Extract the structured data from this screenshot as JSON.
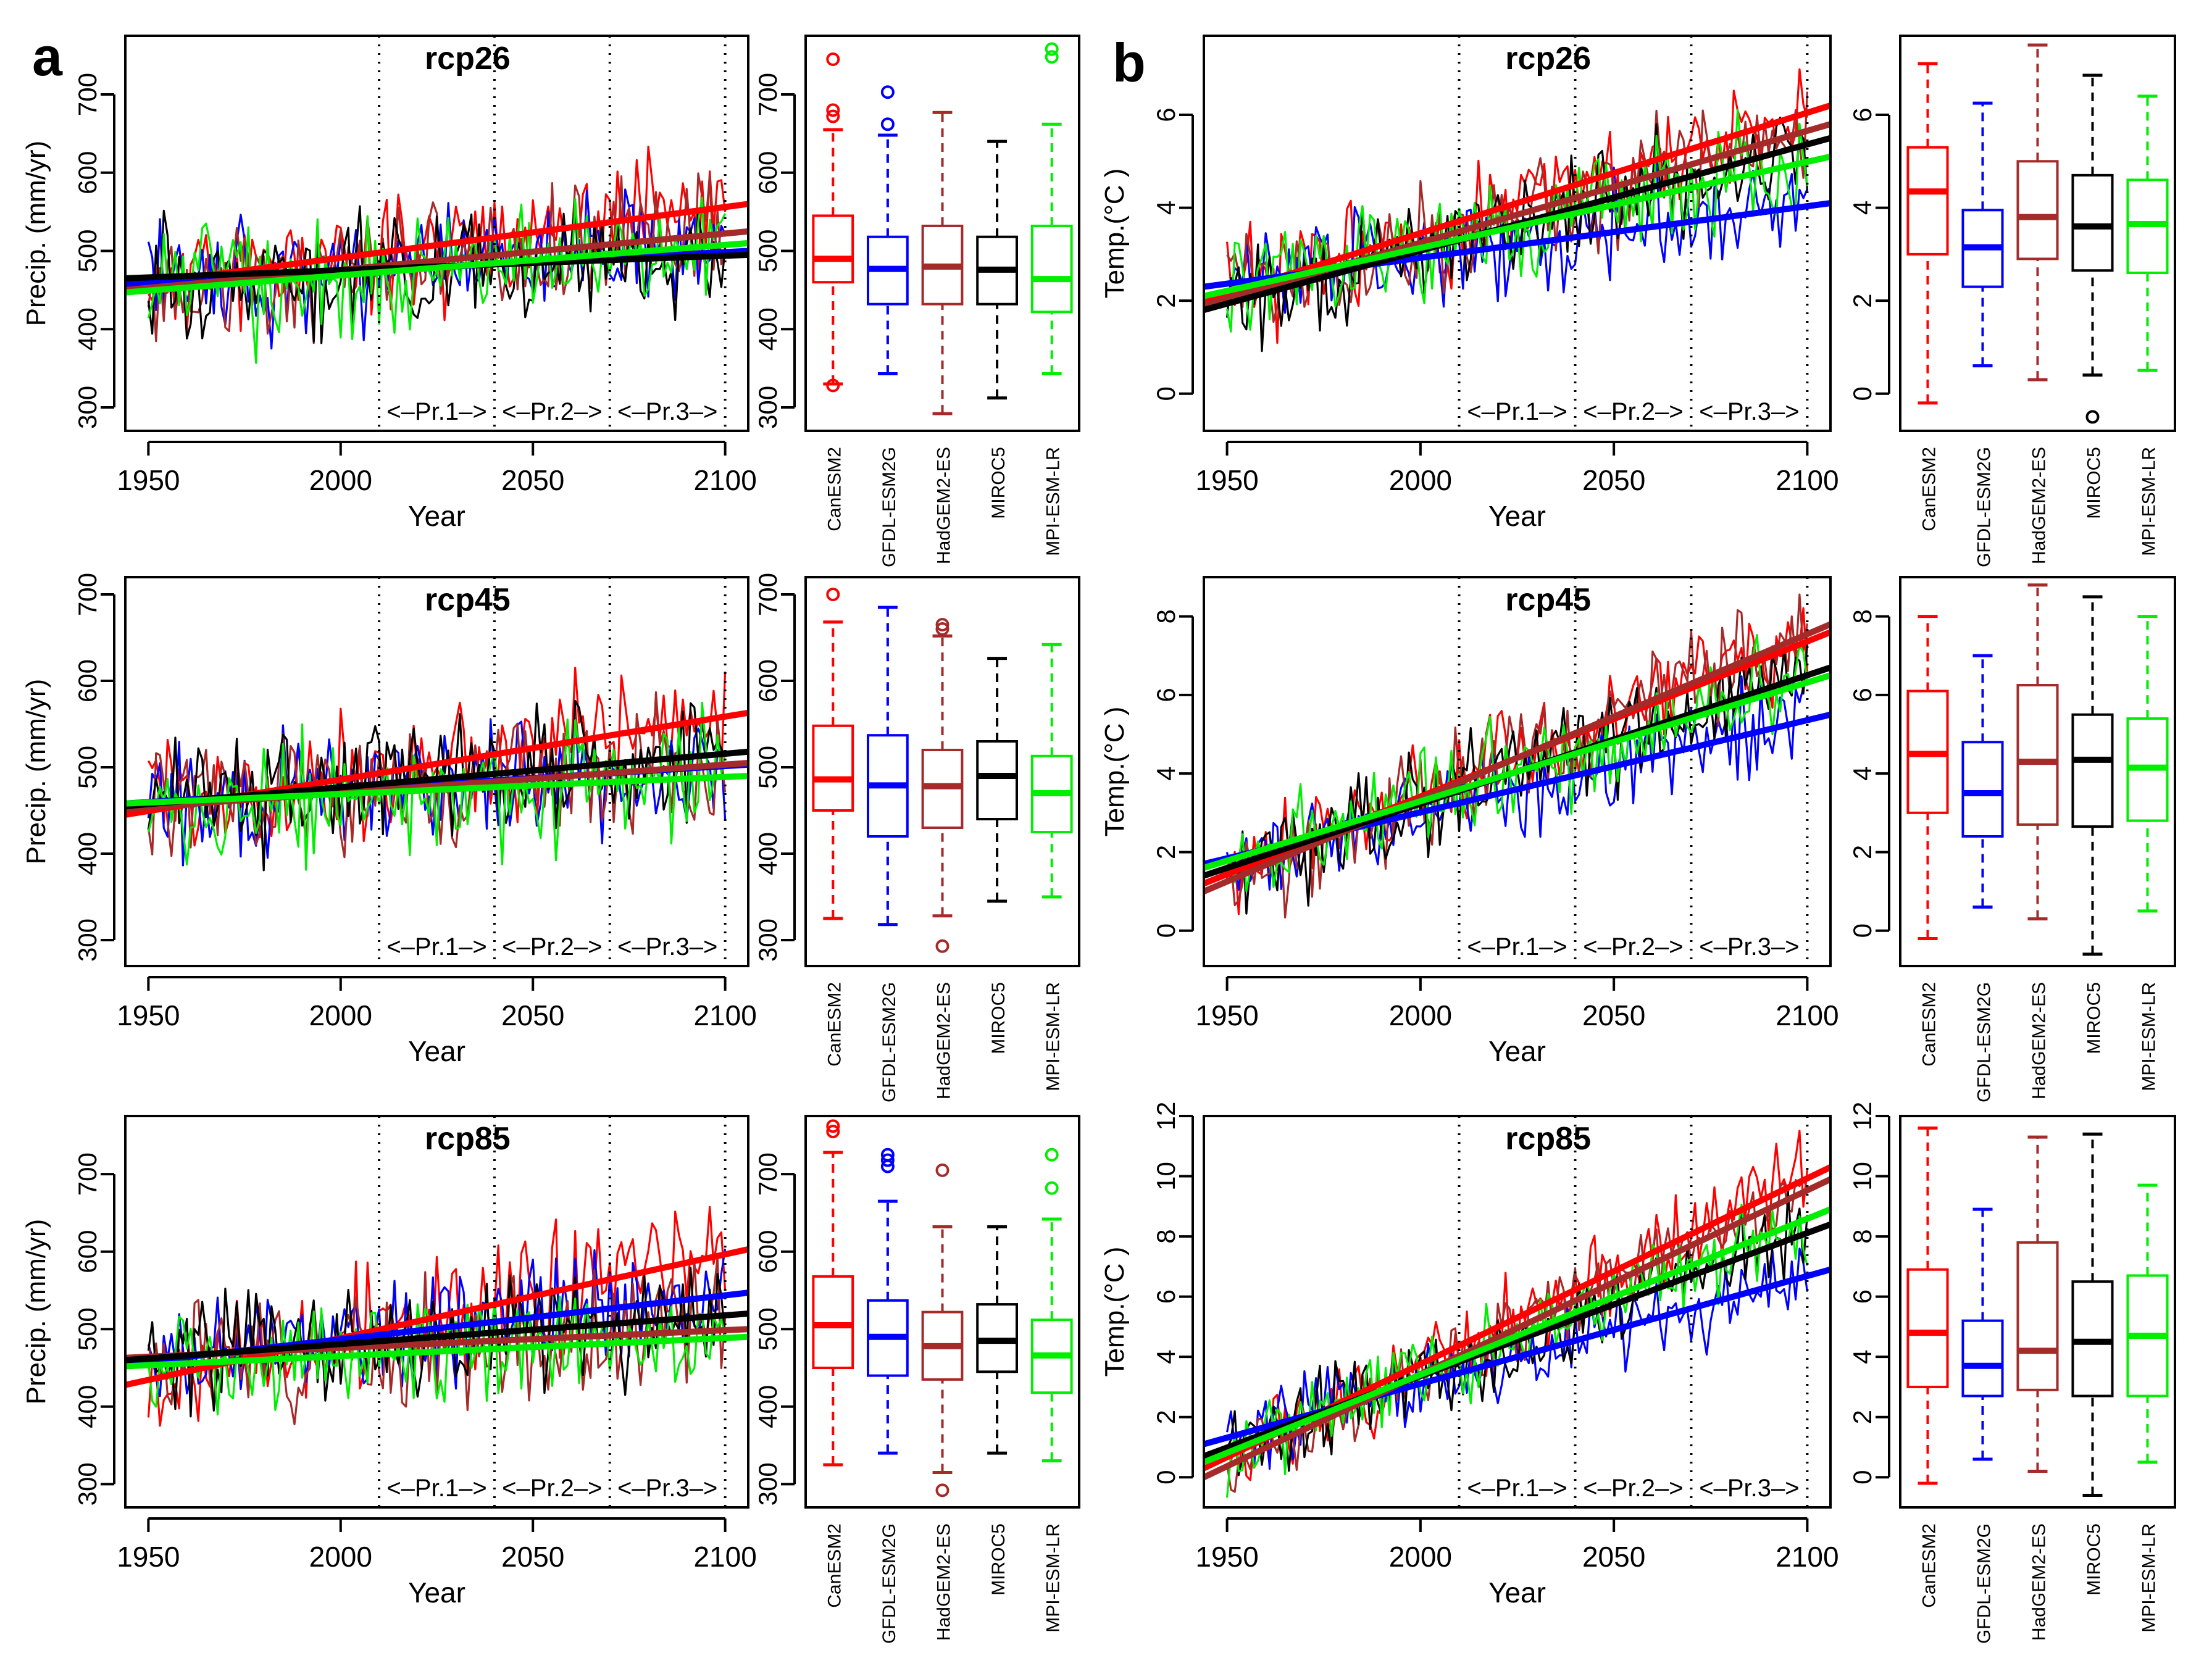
{
  "figure": {
    "panel_a": "a",
    "panel_b": "b",
    "colors": {
      "CanESM2": "#ff0000",
      "GFDL-ESM2G": "#0000ff",
      "HadGEM2-ES": "#a52a2a",
      "MIROC5": "#000000",
      "MPI-ESM-LR": "#00ee00"
    },
    "models": [
      "CanESM2",
      "GFDL-ESM2G",
      "HadGEM2-ES",
      "MIROC5",
      "MPI-ESM-LR"
    ],
    "periods": [
      "<–Pr.1–>",
      "<–Pr.2–>",
      "<–Pr.3–>"
    ],
    "period_boundaries": [
      2010,
      2040,
      2070,
      2100
    ]
  },
  "chart_data": [
    {
      "id": "precip_rcp26",
      "type": "line",
      "title": "rcp26",
      "xlabel": "Year",
      "ylabel": "Precip. (mm/yr)",
      "xlim": [
        1944,
        2106
      ],
      "ylim": [
        270,
        775
      ],
      "xticks": [
        1950,
        2000,
        2050,
        2100
      ],
      "yticks": [
        300,
        400,
        500,
        600,
        700
      ],
      "series_spec": {
        "base": 470,
        "amp": 68,
        "noise_seed": 11
      },
      "trends": [
        {
          "name": "CanESM2",
          "start": [
            1944,
            455
          ],
          "end": [
            2106,
            560
          ]
        },
        {
          "name": "GFDL-ESM2G",
          "start": [
            1944,
            458
          ],
          "end": [
            2106,
            500
          ]
        },
        {
          "name": "HadGEM2-ES",
          "start": [
            1944,
            450
          ],
          "end": [
            2106,
            525
          ]
        },
        {
          "name": "MIROC5",
          "start": [
            1944,
            465
          ],
          "end": [
            2106,
            495
          ]
        },
        {
          "name": "MPI-ESM-LR",
          "start": [
            1944,
            447
          ],
          "end": [
            2106,
            510
          ]
        }
      ]
    },
    {
      "id": "precip_rcp26_box",
      "type": "box",
      "ylim": [
        270,
        775
      ],
      "yticks": [
        300,
        400,
        500,
        600,
        700
      ],
      "boxes": [
        {
          "name": "CanESM2",
          "whisker_low": 330,
          "q1": 460,
          "median": 490,
          "q3": 545,
          "whisker_high": 655,
          "outliers": [
            745,
            680,
            672,
            328
          ]
        },
        {
          "name": "GFDL-ESM2G",
          "whisker_low": 343,
          "q1": 432,
          "median": 477,
          "q3": 518,
          "whisker_high": 648,
          "outliers": [
            703,
            662
          ]
        },
        {
          "name": "HadGEM2-ES",
          "whisker_low": 292,
          "q1": 432,
          "median": 480,
          "q3": 532,
          "whisker_high": 677,
          "outliers": []
        },
        {
          "name": "MIROC5",
          "whisker_low": 312,
          "q1": 432,
          "median": 476,
          "q3": 518,
          "whisker_high": 640,
          "outliers": []
        },
        {
          "name": "MPI-ESM-LR",
          "whisker_low": 343,
          "q1": 422,
          "median": 464,
          "q3": 532,
          "whisker_high": 662,
          "outliers": [
            758,
            748
          ]
        }
      ]
    },
    {
      "id": "temp_rcp26",
      "type": "line",
      "title": "rcp26",
      "xlabel": "Year",
      "ylabel": "Temp.(°C )",
      "xlim": [
        1944,
        2106
      ],
      "ylim": [
        -0.8,
        7.7
      ],
      "xticks": [
        1950,
        2000,
        2050,
        2100
      ],
      "yticks": [
        0,
        2,
        4,
        6
      ],
      "series_spec": {
        "base": 2.6,
        "amp": 1.1,
        "noise_seed": 23,
        "slope": 0.022
      },
      "trends": [
        {
          "name": "CanESM2",
          "start": [
            1944,
            2.0
          ],
          "end": [
            2106,
            6.2
          ]
        },
        {
          "name": "GFDL-ESM2G",
          "start": [
            1944,
            2.3
          ],
          "end": [
            2106,
            4.1
          ]
        },
        {
          "name": "HadGEM2-ES",
          "start": [
            1944,
            1.9
          ],
          "end": [
            2106,
            5.8
          ]
        },
        {
          "name": "MIROC5",
          "start": [
            1944,
            1.8
          ],
          "end": [
            2106,
            5.5
          ]
        },
        {
          "name": "MPI-ESM-LR",
          "start": [
            1944,
            2.1
          ],
          "end": [
            2106,
            5.1
          ]
        }
      ]
    },
    {
      "id": "temp_rcp26_box",
      "type": "box",
      "ylim": [
        -0.8,
        7.7
      ],
      "yticks": [
        0,
        2,
        4,
        6
      ],
      "boxes": [
        {
          "name": "CanESM2",
          "whisker_low": -0.2,
          "q1": 3.0,
          "median": 4.35,
          "q3": 5.3,
          "whisker_high": 7.1,
          "outliers": []
        },
        {
          "name": "GFDL-ESM2G",
          "whisker_low": 0.6,
          "q1": 2.3,
          "median": 3.15,
          "q3": 3.95,
          "whisker_high": 6.25,
          "outliers": []
        },
        {
          "name": "HadGEM2-ES",
          "whisker_low": 0.3,
          "q1": 2.9,
          "median": 3.8,
          "q3": 5.0,
          "whisker_high": 7.5,
          "outliers": []
        },
        {
          "name": "MIROC5",
          "whisker_low": 0.4,
          "q1": 2.65,
          "median": 3.6,
          "q3": 4.7,
          "whisker_high": 6.85,
          "outliers": [
            -0.5
          ]
        },
        {
          "name": "MPI-ESM-LR",
          "whisker_low": 0.5,
          "q1": 2.6,
          "median": 3.65,
          "q3": 4.6,
          "whisker_high": 6.4,
          "outliers": []
        }
      ]
    },
    {
      "id": "precip_rcp45",
      "type": "line",
      "title": "rcp45",
      "xlabel": "Year",
      "ylabel": "Precip. (mm/yr)",
      "xlim": [
        1944,
        2106
      ],
      "ylim": [
        270,
        720
      ],
      "xticks": [
        1950,
        2000,
        2050,
        2100
      ],
      "yticks": [
        300,
        400,
        500,
        600,
        700
      ],
      "series_spec": {
        "base": 470,
        "amp": 68,
        "noise_seed": 37
      },
      "trends": [
        {
          "name": "CanESM2",
          "start": [
            1944,
            445
          ],
          "end": [
            2106,
            563
          ]
        },
        {
          "name": "GFDL-ESM2G",
          "start": [
            1944,
            458
          ],
          "end": [
            2106,
            503
          ]
        },
        {
          "name": "HadGEM2-ES",
          "start": [
            1944,
            452
          ],
          "end": [
            2106,
            505
          ]
        },
        {
          "name": "MIROC5",
          "start": [
            1944,
            455
          ],
          "end": [
            2106,
            518
          ]
        },
        {
          "name": "MPI-ESM-LR",
          "start": [
            1944,
            458
          ],
          "end": [
            2106,
            490
          ]
        }
      ]
    },
    {
      "id": "precip_rcp45_box",
      "type": "box",
      "ylim": [
        270,
        720
      ],
      "yticks": [
        300,
        400,
        500,
        600,
        700
      ],
      "boxes": [
        {
          "name": "CanESM2",
          "whisker_low": 325,
          "q1": 450,
          "median": 486,
          "q3": 548,
          "whisker_high": 668,
          "outliers": [
            700
          ]
        },
        {
          "name": "GFDL-ESM2G",
          "whisker_low": 318,
          "q1": 420,
          "median": 479,
          "q3": 537,
          "whisker_high": 685,
          "outliers": []
        },
        {
          "name": "HadGEM2-ES",
          "whisker_low": 328,
          "q1": 430,
          "median": 478,
          "q3": 520,
          "whisker_high": 652,
          "outliers": [
            665,
            660,
            293
          ]
        },
        {
          "name": "MIROC5",
          "whisker_low": 345,
          "q1": 440,
          "median": 490,
          "q3": 530,
          "whisker_high": 626,
          "outliers": []
        },
        {
          "name": "MPI-ESM-LR",
          "whisker_low": 350,
          "q1": 425,
          "median": 470,
          "q3": 513,
          "whisker_high": 642,
          "outliers": []
        }
      ]
    },
    {
      "id": "temp_rcp45",
      "type": "line",
      "title": "rcp45",
      "xlabel": "Year",
      "ylabel": "Temp.(°C )",
      "xlim": [
        1944,
        2106
      ],
      "ylim": [
        -0.9,
        9.0
      ],
      "xticks": [
        1950,
        2000,
        2050,
        2100
      ],
      "yticks": [
        0,
        2,
        4,
        6,
        8
      ],
      "series_spec": {
        "base": 2.1,
        "amp": 1.2,
        "noise_seed": 41,
        "slope": 0.032
      },
      "trends": [
        {
          "name": "CanESM2",
          "start": [
            1944,
            1.2
          ],
          "end": [
            2106,
            7.6
          ]
        },
        {
          "name": "GFDL-ESM2G",
          "start": [
            1944,
            1.7
          ],
          "end": [
            2106,
            5.5
          ]
        },
        {
          "name": "HadGEM2-ES",
          "start": [
            1944,
            1.0
          ],
          "end": [
            2106,
            7.8
          ]
        },
        {
          "name": "MIROC5",
          "start": [
            1944,
            1.4
          ],
          "end": [
            2106,
            6.7
          ]
        },
        {
          "name": "MPI-ESM-LR",
          "start": [
            1944,
            1.6
          ],
          "end": [
            2106,
            6.5
          ]
        }
      ]
    },
    {
      "id": "temp_rcp45_box",
      "type": "box",
      "ylim": [
        -0.9,
        9.0
      ],
      "yticks": [
        0,
        2,
        4,
        6,
        8
      ],
      "boxes": [
        {
          "name": "CanESM2",
          "whisker_low": -0.2,
          "q1": 3.0,
          "median": 4.5,
          "q3": 6.1,
          "whisker_high": 8.0,
          "outliers": []
        },
        {
          "name": "GFDL-ESM2G",
          "whisker_low": 0.6,
          "q1": 2.4,
          "median": 3.5,
          "q3": 4.8,
          "whisker_high": 7.0,
          "outliers": []
        },
        {
          "name": "HadGEM2-ES",
          "whisker_low": 0.3,
          "q1": 2.7,
          "median": 4.3,
          "q3": 6.25,
          "whisker_high": 8.8,
          "outliers": []
        },
        {
          "name": "MIROC5",
          "whisker_low": -0.6,
          "q1": 2.65,
          "median": 4.35,
          "q3": 5.5,
          "whisker_high": 8.5,
          "outliers": []
        },
        {
          "name": "MPI-ESM-LR",
          "whisker_low": 0.5,
          "q1": 2.8,
          "median": 4.15,
          "q3": 5.4,
          "whisker_high": 8.0,
          "outliers": []
        }
      ]
    },
    {
      "id": "precip_rcp85",
      "type": "line",
      "title": "rcp85",
      "xlabel": "Year",
      "ylabel": "Precip. (mm/yr)",
      "xlim": [
        1944,
        2106
      ],
      "ylim": [
        270,
        775
      ],
      "xticks": [
        1950,
        2000,
        2050,
        2100
      ],
      "yticks": [
        300,
        400,
        500,
        600,
        700
      ],
      "series_spec": {
        "base": 475,
        "amp": 72,
        "noise_seed": 53
      },
      "trends": [
        {
          "name": "CanESM2",
          "start": [
            1944,
            428
          ],
          "end": [
            2106,
            603
          ]
        },
        {
          "name": "GFDL-ESM2G",
          "start": [
            1944,
            455
          ],
          "end": [
            2106,
            547
          ]
        },
        {
          "name": "HadGEM2-ES",
          "start": [
            1944,
            463
          ],
          "end": [
            2106,
            500
          ]
        },
        {
          "name": "MIROC5",
          "start": [
            1944,
            460
          ],
          "end": [
            2106,
            520
          ]
        },
        {
          "name": "MPI-ESM-LR",
          "start": [
            1944,
            452
          ],
          "end": [
            2106,
            490
          ]
        }
      ]
    },
    {
      "id": "precip_rcp85_box",
      "type": "box",
      "ylim": [
        270,
        775
      ],
      "yticks": [
        300,
        400,
        500,
        600,
        700
      ],
      "boxes": [
        {
          "name": "CanESM2",
          "whisker_low": 325,
          "q1": 450,
          "median": 505,
          "q3": 568,
          "whisker_high": 728,
          "outliers": [
            762,
            755
          ]
        },
        {
          "name": "GFDL-ESM2G",
          "whisker_low": 340,
          "q1": 440,
          "median": 490,
          "q3": 537,
          "whisker_high": 665,
          "outliers": [
            725,
            718,
            710
          ]
        },
        {
          "name": "HadGEM2-ES",
          "whisker_low": 315,
          "q1": 435,
          "median": 478,
          "q3": 522,
          "whisker_high": 632,
          "outliers": [
            705,
            292
          ]
        },
        {
          "name": "MIROC5",
          "whisker_low": 340,
          "q1": 445,
          "median": 485,
          "q3": 532,
          "whisker_high": 632,
          "outliers": []
        },
        {
          "name": "MPI-ESM-LR",
          "whisker_low": 330,
          "q1": 418,
          "median": 466,
          "q3": 512,
          "whisker_high": 642,
          "outliers": [
            725,
            682
          ]
        }
      ]
    },
    {
      "id": "temp_rcp85",
      "type": "line",
      "title": "rcp85",
      "xlabel": "Year",
      "ylabel": "Temp.(°C )",
      "xlim": [
        1944,
        2106
      ],
      "ylim": [
        -1.0,
        12.0
      ],
      "xticks": [
        1950,
        2000,
        2050,
        2100
      ],
      "yticks": [
        0,
        2,
        4,
        6,
        8,
        10,
        12
      ],
      "series_spec": {
        "base": 1.9,
        "amp": 1.3,
        "noise_seed": 67,
        "slope": 0.058
      },
      "trends": [
        {
          "name": "CanESM2",
          "start": [
            1944,
            0.3
          ],
          "end": [
            2106,
            10.3
          ]
        },
        {
          "name": "GFDL-ESM2G",
          "start": [
            1944,
            1.1
          ],
          "end": [
            2106,
            6.9
          ]
        },
        {
          "name": "HadGEM2-ES",
          "start": [
            1944,
            0.0
          ],
          "end": [
            2106,
            9.9
          ]
        },
        {
          "name": "MIROC5",
          "start": [
            1944,
            0.7
          ],
          "end": [
            2106,
            8.4
          ]
        },
        {
          "name": "MPI-ESM-LR",
          "start": [
            1944,
            0.5
          ],
          "end": [
            2106,
            8.9
          ]
        }
      ]
    },
    {
      "id": "temp_rcp85_box",
      "type": "box",
      "ylim": [
        -1.0,
        12.0
      ],
      "yticks": [
        0,
        2,
        4,
        6,
        8,
        10,
        12
      ],
      "boxes": [
        {
          "name": "CanESM2",
          "whisker_low": -0.2,
          "q1": 3.0,
          "median": 4.8,
          "q3": 6.9,
          "whisker_high": 11.6,
          "outliers": []
        },
        {
          "name": "GFDL-ESM2G",
          "whisker_low": 0.6,
          "q1": 2.7,
          "median": 3.7,
          "q3": 5.2,
          "whisker_high": 8.9,
          "outliers": []
        },
        {
          "name": "HadGEM2-ES",
          "whisker_low": 0.2,
          "q1": 2.9,
          "median": 4.2,
          "q3": 7.8,
          "whisker_high": 11.3,
          "outliers": []
        },
        {
          "name": "MIROC5",
          "whisker_low": -0.6,
          "q1": 2.7,
          "median": 4.5,
          "q3": 6.5,
          "whisker_high": 11.4,
          "outliers": []
        },
        {
          "name": "MPI-ESM-LR",
          "whisker_low": 0.5,
          "q1": 2.7,
          "median": 4.7,
          "q3": 6.7,
          "whisker_high": 9.7,
          "outliers": []
        }
      ]
    }
  ]
}
